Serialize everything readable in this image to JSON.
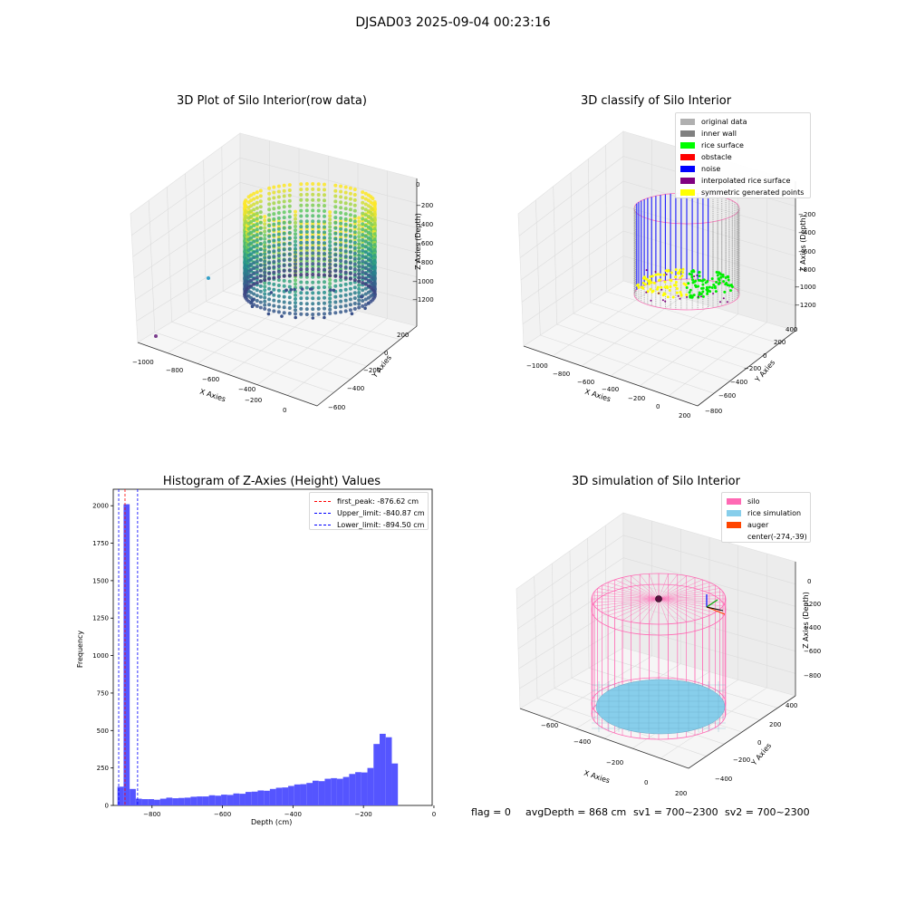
{
  "figure_title": "DJSAD03 2025-09-04 00:23:16",
  "footer": {
    "flag": "flag = 0",
    "avg_depth": "avgDepth = 868 cm",
    "sv1": "sv1 = 700~2300",
    "sv2": "sv2 = 700~2300"
  },
  "colors": {
    "hist_bar": "#5555ff",
    "first_peak": "#ff0000",
    "limit": "#0000ff",
    "silo": "#ff69b4",
    "rice": "#87ceeb",
    "auger": "#ff4500"
  },
  "chart_data": [
    {
      "type": "scatter3d",
      "title": "3D Plot of Silo Interior(row data)",
      "xlabel": "X Axies",
      "ylabel": "Y Axies",
      "zlabel": "Z Axies (Depth)",
      "x_ticks": [
        "−1000",
        "−800",
        "−600",
        "−400",
        "−200",
        "0"
      ],
      "y_ticks": [
        "200",
        "0",
        "−200",
        "−400",
        "−600"
      ],
      "z_ticks": [
        "0",
        "−200",
        "−400",
        "−600",
        "−800",
        "−1000",
        "−1200"
      ],
      "colormap": "viridis"
    },
    {
      "type": "scatter3d",
      "title": "3D classify of Silo Interior",
      "xlabel": "X Axies",
      "ylabel": "Y Axies",
      "zlabel": "Z Axies (Depth)",
      "x_ticks": [
        "−1000",
        "−800",
        "−600",
        "−400",
        "−200",
        "0",
        "200"
      ],
      "y_ticks": [
        "400",
        "200",
        "0",
        "−200",
        "−400",
        "−600",
        "−800"
      ],
      "z_ticks": [
        "−200",
        "−400",
        "−600",
        "−800",
        "−1000",
        "−1200"
      ],
      "legend": [
        {
          "label": "original data",
          "color": "#b0b0b0"
        },
        {
          "label": "inner wall",
          "color": "#808080"
        },
        {
          "label": "rice surface",
          "color": "#00ff00"
        },
        {
          "label": "obstacle",
          "color": "#ff0000"
        },
        {
          "label": "noise",
          "color": "#0000ff"
        },
        {
          "label": "interpolated rice surface",
          "color": "#800080"
        },
        {
          "label": "symmetric generated points",
          "color": "#ffff00"
        }
      ]
    },
    {
      "type": "bar",
      "title": "Histogram of Z-Axies (Height) Values",
      "xlabel": "Depth (cm)",
      "ylabel": "Frequency",
      "xlim": [
        -910,
        -5
      ],
      "ylim": [
        0,
        2110
      ],
      "x_ticks": [
        -800,
        -600,
        -400,
        -200,
        0
      ],
      "x_tick_labels": [
        "−800",
        "−600",
        "−400",
        "−200",
        "0"
      ],
      "y_ticks": [
        0,
        250,
        500,
        750,
        1000,
        1250,
        1500,
        1750,
        2000
      ],
      "bin_width": 17.3,
      "bin_start": -898,
      "values": [
        125,
        2010,
        110,
        45,
        42,
        42,
        38,
        45,
        52,
        48,
        50,
        52,
        58,
        60,
        60,
        68,
        65,
        72,
        70,
        80,
        78,
        90,
        92,
        100,
        98,
        110,
        118,
        120,
        130,
        140,
        142,
        150,
        165,
        162,
        178,
        182,
        178,
        190,
        210,
        222,
        220,
        250,
        410,
        478,
        455,
        280
      ],
      "lines": [
        {
          "label": "first_peak: -876.62 cm",
          "x": -876.62,
          "color": "#ff0000"
        },
        {
          "label": "Upper_limit: -840.87 cm",
          "x": -840.87,
          "color": "#0000ff"
        },
        {
          "label": "Lower_limit: -894.50 cm",
          "x": -894.5,
          "color": "#0000ff"
        }
      ]
    },
    {
      "type": "surface3d",
      "title": "3D simulation of Silo Interior",
      "xlabel": "X Axies",
      "ylabel": "Y Axies",
      "zlabel": "Z Axies (Depth)",
      "x_ticks": [
        "−600",
        "−400",
        "−200",
        "0",
        "200"
      ],
      "y_ticks": [
        "400",
        "200",
        "0",
        "−200",
        "−400"
      ],
      "z_ticks": [
        "0",
        "−200",
        "−400",
        "−600",
        "−800"
      ],
      "legend": [
        {
          "label": "silo",
          "color": "#ff69b4"
        },
        {
          "label": "rice simulation",
          "color": "#87ceeb"
        },
        {
          "label": "auger",
          "color": "#ff4500"
        },
        {
          "label": "center(-274,-39)",
          "color": ""
        }
      ]
    }
  ]
}
